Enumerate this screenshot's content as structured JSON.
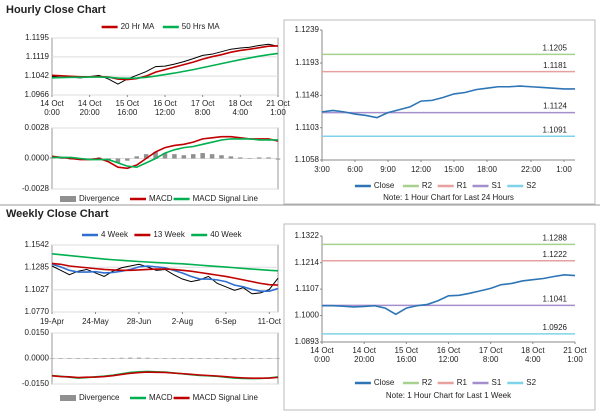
{
  "section_titles": [
    "Hourly Close Chart",
    "Weekly Close Chart"
  ],
  "chart_data": [
    {
      "type": "line",
      "legend": "top",
      "grid": true,
      "x": [
        0,
        1,
        2,
        3,
        4,
        5,
        6,
        7,
        8,
        9,
        10,
        11,
        12,
        13,
        14,
        15,
        16,
        17,
        18,
        19,
        20,
        21,
        22,
        23,
        24
      ],
      "xlim": [
        0,
        24
      ],
      "xticks": [
        {
          "value": 0,
          "label": [
            "14 Oct",
            "0:00"
          ]
        },
        {
          "value": 4,
          "label": [
            "14 Oct",
            "20:00"
          ]
        },
        {
          "value": 8,
          "label": [
            "15 Oct",
            "16:00"
          ]
        },
        {
          "value": 12,
          "label": [
            "16 Oct",
            "12:00"
          ]
        },
        {
          "value": 16,
          "label": [
            "17 Oct",
            "8:00"
          ]
        },
        {
          "value": 20,
          "label": [
            "18 Oct",
            "4:00"
          ]
        },
        {
          "value": 24,
          "label": [
            "21 Oct",
            "1:00"
          ]
        }
      ],
      "ylim": [
        1.0966,
        1.1195
      ],
      "yticks": [
        1.0966,
        1.1042,
        1.1119,
        1.1195
      ],
      "series": [
        {
          "color": "#000000",
          "values": [
            1.104,
            1.1042,
            1.1038,
            1.1035,
            1.104,
            1.1045,
            1.103,
            1.101,
            1.103,
            1.1045,
            1.106,
            1.108,
            1.1082,
            1.109,
            1.11,
            1.1112,
            1.1125,
            1.113,
            1.114,
            1.115,
            1.1155,
            1.1158,
            1.1165,
            1.117,
            1.1162
          ]
        },
        {
          "name": "20 Hr MA",
          "color": "#c00000",
          "values": [
            1.1045,
            1.1043,
            1.1041,
            1.1039,
            1.1039,
            1.104,
            1.1038,
            1.103,
            1.1028,
            1.1032,
            1.1042,
            1.1058,
            1.1068,
            1.1078,
            1.1088,
            1.1098,
            1.111,
            1.112,
            1.1128,
            1.1138,
            1.1145,
            1.115,
            1.1156,
            1.1162,
            1.1163
          ]
        },
        {
          "name": "50 Hrs MA",
          "color": "#00b050",
          "values": [
            1.1035,
            1.1036,
            1.1037,
            1.1037,
            1.1038,
            1.1038,
            1.1037,
            1.1034,
            1.1033,
            1.1034,
            1.1037,
            1.1042,
            1.1048,
            1.1054,
            1.1061,
            1.1068,
            1.1076,
            1.1084,
            1.1092,
            1.11,
            1.1108,
            1.1115,
            1.1122,
            1.1128,
            1.1133
          ]
        }
      ]
    },
    {
      "type": "line",
      "legend": "bottom",
      "grid": true,
      "x": [
        0,
        1,
        2,
        3,
        4,
        5,
        6,
        7,
        8,
        9,
        10,
        11,
        12,
        13,
        14,
        15,
        16,
        17,
        18,
        19,
        20,
        21,
        22,
        23,
        24
      ],
      "xlim": [
        0,
        24
      ],
      "ylim": [
        -0.0028,
        0.0028
      ],
      "yticks": [
        0.0028,
        {
          "value": 0,
          "label": "0.0000"
        },
        -0.0028
      ],
      "series": [
        {
          "name": "Divergence",
          "type": "bar",
          "color": "#909090",
          "values": [
            0.0001,
            0,
            -0.0001,
            -0.0001,
            0,
            0.0001,
            -0.0002,
            -0.0004,
            -0.0002,
            0.0002,
            0.0004,
            0.0006,
            0.0005,
            0.0004,
            0.0003,
            0.0004,
            0.0005,
            0.0004,
            0.0003,
            0.0002,
            0.0001,
            0,
            0.0001,
            0.0001,
            -0.0001
          ]
        },
        {
          "name": "MACD",
          "color": "#c00000",
          "values": [
            0.0002,
            0.0001,
            0,
            -0.0001,
            -0.0001,
            0,
            -0.0003,
            -0.0008,
            -0.0009,
            -0.0006,
            0,
            0.0006,
            0.001,
            0.0012,
            0.0013,
            0.0015,
            0.0018,
            0.0019,
            0.002,
            0.002,
            0.0019,
            0.0018,
            0.0018,
            0.0018,
            0.0016
          ]
        },
        {
          "name": "MACD Signal Line",
          "color": "#00b050",
          "values": [
            0.0001,
            0.0001,
            0.0001,
            0,
            -0.0001,
            -0.0001,
            -0.0001,
            -0.0004,
            -0.0007,
            -0.0008,
            -0.0004,
            0,
            0.0005,
            0.0008,
            0.001,
            0.0011,
            0.0013,
            0.0015,
            0.0017,
            0.0018,
            0.0018,
            0.0018,
            0.0017,
            0.0017,
            0.0017
          ]
        }
      ]
    },
    {
      "type": "line",
      "legend": "bottom",
      "grid": false,
      "note": "Note: 1 Hour Chart for Last 24 Hours",
      "x": [
        0,
        1,
        2,
        3,
        4,
        5,
        6,
        7,
        8,
        9,
        10,
        11,
        12,
        13,
        14,
        15,
        16,
        17,
        18,
        19,
        20,
        21,
        22,
        23
      ],
      "xlim": [
        0,
        23
      ],
      "xticks": [
        {
          "value": 0,
          "label": "3:00"
        },
        {
          "value": 3,
          "label": "6:00"
        },
        {
          "value": 6,
          "label": "9:00"
        },
        {
          "value": 9,
          "label": "12:00"
        },
        {
          "value": 12,
          "label": "15:00"
        },
        {
          "value": 15,
          "label": "18:00"
        },
        {
          "value": 19,
          "label": "22:00"
        },
        {
          "value": 22,
          "label": "1:00"
        }
      ],
      "ylim": [
        1.1058,
        1.1239
      ],
      "yticks": [
        1.1058,
        1.1103,
        1.1148,
        1.1193,
        1.1239
      ],
      "series": [
        {
          "name": "Close",
          "color": "#2e75b6",
          "values": [
            1.1125,
            1.1127,
            1.1125,
            1.1122,
            1.112,
            1.1117,
            1.1124,
            1.1128,
            1.1132,
            1.114,
            1.1141,
            1.1145,
            1.115,
            1.1152,
            1.1156,
            1.1158,
            1.116,
            1.116,
            1.1161,
            1.116,
            1.1159,
            1.1158,
            1.1157,
            1.1157
          ]
        }
      ],
      "levels": [
        {
          "name": "R2",
          "color": "#a9d18e",
          "value": 1.1205
        },
        {
          "name": "R1",
          "color": "#e6a0a0",
          "value": 1.1181
        },
        {
          "name": "S1",
          "color": "#a48fcc",
          "value": 1.1124
        },
        {
          "name": "S2",
          "color": "#7fd3e8",
          "value": 1.1091
        }
      ]
    },
    {
      "type": "line",
      "legend": "top",
      "grid": true,
      "x": [
        0,
        1,
        2,
        3,
        4,
        5,
        6,
        7,
        8,
        9,
        10,
        11,
        12,
        13,
        14,
        15,
        16,
        17,
        18,
        19,
        20,
        21,
        22,
        23,
        24,
        25,
        26
      ],
      "xlim": [
        0,
        26
      ],
      "xticks": [
        {
          "value": 0,
          "label": "19-Apr"
        },
        {
          "value": 5,
          "label": "24-May"
        },
        {
          "value": 10,
          "label": "28-Jun"
        },
        {
          "value": 15,
          "label": "2-Aug"
        },
        {
          "value": 20,
          "label": "6-Sep"
        },
        {
          "value": 25,
          "label": "11-Oct"
        }
      ],
      "ylim": [
        1.077,
        1.1542
      ],
      "yticks": [
        {
          "value": 1.077,
          "label": "1.0770"
        },
        1.1027,
        1.1285,
        1.1542
      ],
      "series": [
        {
          "color": "#000000",
          "values": [
            1.13,
            1.125,
            1.12,
            1.124,
            1.126,
            1.122,
            1.118,
            1.124,
            1.128,
            1.13,
            1.132,
            1.129,
            1.125,
            1.126,
            1.12,
            1.115,
            1.112,
            1.114,
            1.118,
            1.11,
            1.106,
            1.102,
            1.105,
            1.098,
            1.099,
            1.103,
            1.116
          ]
        },
        {
          "name": "4 Week",
          "color": "#2f6fd1",
          "values": [
            1.132,
            1.129,
            1.125,
            1.123,
            1.123,
            1.1235,
            1.122,
            1.1225,
            1.124,
            1.126,
            1.129,
            1.13,
            1.129,
            1.128,
            1.125,
            1.122,
            1.118,
            1.115,
            1.115,
            1.114,
            1.112,
            1.108,
            1.106,
            1.103,
            1.101,
            1.101,
            1.104
          ]
        },
        {
          "name": "13 Week",
          "color": "#c00000",
          "values": [
            1.133,
            1.132,
            1.13,
            1.129,
            1.128,
            1.127,
            1.126,
            1.1255,
            1.125,
            1.125,
            1.1255,
            1.126,
            1.1265,
            1.1265,
            1.126,
            1.125,
            1.124,
            1.1225,
            1.121,
            1.1195,
            1.118,
            1.116,
            1.114,
            1.112,
            1.11,
            1.1085,
            1.108
          ]
        },
        {
          "name": "40 Week",
          "color": "#00b050",
          "values": [
            1.144,
            1.143,
            1.142,
            1.141,
            1.14,
            1.139,
            1.138,
            1.1372,
            1.1365,
            1.1358,
            1.1352,
            1.1346,
            1.134,
            1.1335,
            1.133,
            1.1325,
            1.1318,
            1.131,
            1.1302,
            1.1295,
            1.1288,
            1.128,
            1.1272,
            1.1265,
            1.1258,
            1.125,
            1.1245
          ]
        }
      ]
    },
    {
      "type": "line",
      "legend": "bottom",
      "grid": true,
      "x": [
        0,
        1,
        2,
        3,
        4,
        5,
        6,
        7,
        8,
        9,
        10,
        11,
        12,
        13,
        14,
        15,
        16,
        17,
        18,
        19,
        20,
        21,
        22,
        23,
        24,
        25,
        26
      ],
      "xlim": [
        0,
        26
      ],
      "ylim": [
        -0.015,
        0.015
      ],
      "yticks": [
        {
          "value": 0.015,
          "label": "0.0150"
        },
        {
          "value": 0,
          "label": "0.0000"
        },
        {
          "value": -0.015,
          "label": "-0.0150"
        }
      ],
      "series": [
        {
          "name": "Divergence",
          "type": "bar",
          "color": "#909090",
          "values": [
            0.0002,
            0.0001,
            -0.0002,
            -0.0003,
            -0.0002,
            0.0001,
            0.0002,
            0.0003,
            0.0004,
            0.0005,
            0.0005,
            0.0004,
            0.0003,
            0.0002,
            0.0001,
            -0.0001,
            -0.0002,
            -0.0003,
            -0.0002,
            -0.0002,
            -0.0003,
            -0.0004,
            -0.0003,
            -0.0002,
            -0.0001,
            0.0001,
            0.0003
          ]
        },
        {
          "name": "MACD",
          "color": "#00b050",
          "values": [
            -0.01,
            -0.0105,
            -0.011,
            -0.0115,
            -0.0112,
            -0.0108,
            -0.0104,
            -0.0098,
            -0.009,
            -0.0082,
            -0.0078,
            -0.0076,
            -0.0078,
            -0.008,
            -0.0085,
            -0.009,
            -0.0095,
            -0.01,
            -0.0102,
            -0.0105,
            -0.011,
            -0.0115,
            -0.0117,
            -0.0118,
            -0.0117,
            -0.0114,
            -0.0108
          ]
        },
        {
          "name": "MACD Signal Line",
          "color": "#c00000",
          "values": [
            -0.0102,
            -0.0106,
            -0.0108,
            -0.0112,
            -0.011,
            -0.0109,
            -0.0106,
            -0.0101,
            -0.0094,
            -0.0087,
            -0.0083,
            -0.008,
            -0.0081,
            -0.0082,
            -0.0086,
            -0.0089,
            -0.0093,
            -0.0097,
            -0.01,
            -0.0103,
            -0.0107,
            -0.0111,
            -0.0114,
            -0.0116,
            -0.0116,
            -0.0115,
            -0.0111
          ]
        }
      ]
    },
    {
      "type": "line",
      "legend": "bottom",
      "grid": false,
      "note": "Note: 1 Hour Chart for Last 1 Week",
      "x": [
        0,
        1,
        2,
        3,
        4,
        5,
        6,
        7,
        8,
        9,
        10,
        11,
        12,
        13,
        14,
        15,
        16,
        17,
        18,
        19,
        20,
        21,
        22,
        23,
        24
      ],
      "xlim": [
        0,
        24
      ],
      "xticks": [
        {
          "value": 0,
          "label": [
            "14 Oct",
            "0:00"
          ]
        },
        {
          "value": 4,
          "label": [
            "14 Oct",
            "20:00"
          ]
        },
        {
          "value": 8,
          "label": [
            "15 Oct",
            "16:00"
          ]
        },
        {
          "value": 12,
          "label": [
            "16 Oct",
            "12:00"
          ]
        },
        {
          "value": 16,
          "label": [
            "17 Oct",
            "8:00"
          ]
        },
        {
          "value": 20,
          "label": [
            "18 Oct",
            "4:00"
          ]
        },
        {
          "value": 24,
          "label": [
            "21 Oct",
            "1:00"
          ]
        }
      ],
      "ylim": [
        1.0893,
        1.1322
      ],
      "yticks": [
        1.0893,
        {
          "value": 1.1,
          "label": "1.1000"
        },
        1.1107,
        1.1214,
        1.1322
      ],
      "series": [
        {
          "name": "Close",
          "color": "#2e75b6",
          "values": [
            1.104,
            1.104,
            1.1038,
            1.1035,
            1.1037,
            1.104,
            1.103,
            1.1005,
            1.103,
            1.104,
            1.1045,
            1.106,
            1.108,
            1.1082,
            1.109,
            1.11,
            1.111,
            1.1125,
            1.113,
            1.114,
            1.1145,
            1.115,
            1.1158,
            1.1165,
            1.1162
          ]
        }
      ],
      "levels": [
        {
          "name": "R2",
          "color": "#a9d18e",
          "value": 1.1288
        },
        {
          "name": "R1",
          "color": "#e6a0a0",
          "value": 1.1222
        },
        {
          "name": "S1",
          "color": "#a48fcc",
          "value": 1.1041
        },
        {
          "name": "S2",
          "color": "#7fd3e8",
          "value": 1.0926
        }
      ]
    }
  ]
}
